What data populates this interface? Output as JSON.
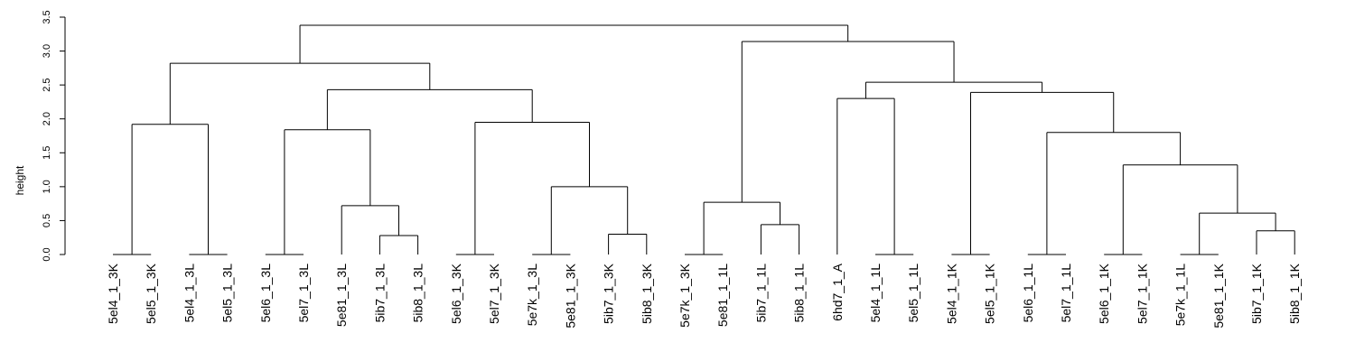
{
  "chart_data": {
    "type": "dendrogram",
    "ylabel": "height",
    "ylim": [
      0,
      3.5
    ],
    "yticks": [
      0.0,
      0.5,
      1.0,
      1.5,
      2.0,
      2.5,
      3.0,
      3.5
    ],
    "ytick_labels": [
      "0.0",
      "0.5",
      "1.0",
      "1.5",
      "2.0",
      "2.5",
      "3.0",
      "3.5"
    ],
    "leaves": [
      "5el4_1_3K",
      "5el5_1_3K",
      "5el4_1_3L",
      "5el5_1_3L",
      "5el6_1_3L",
      "5el7_1_3L",
      "5e81_1_3L",
      "5ib7_1_3L",
      "5ib8_1_3L",
      "5el6_1_3K",
      "5el7_1_3K",
      "5e7k_1_3L",
      "5e81_1_3K",
      "5ib7_1_3K",
      "5ib8_1_3K",
      "5e7k_1_3K",
      "5e81_1_1L",
      "5ib7_1_1L",
      "5ib8_1_1L",
      "6hd7_1_A",
      "5el4_1_1L",
      "5el5_1_1L",
      "5el4_1_1K",
      "5el5_1_1K",
      "5el6_1_1L",
      "5el7_1_1L",
      "5el6_1_1K",
      "5el7_1_1K",
      "5e7k_1_1L",
      "5e81_1_1K",
      "5ib7_1_1K",
      "5ib8_1_1K"
    ],
    "merges": [
      {
        "id": "m1",
        "left": 0,
        "right": 1,
        "height": 0.0
      },
      {
        "id": "m2",
        "left": 2,
        "right": 3,
        "height": 0.0
      },
      {
        "id": "m3",
        "left": "m1",
        "right": "m2",
        "height": 1.92
      },
      {
        "id": "m4",
        "left": 4,
        "right": 5,
        "height": 0.0
      },
      {
        "id": "m5",
        "left": 7,
        "right": 8,
        "height": 0.28
      },
      {
        "id": "m6",
        "left": 6,
        "right": "m5",
        "height": 0.72
      },
      {
        "id": "m7",
        "left": "m4",
        "right": "m6",
        "height": 1.84
      },
      {
        "id": "m8",
        "left": 9,
        "right": 10,
        "height": 0.0
      },
      {
        "id": "m9",
        "left": 11,
        "right": 12,
        "height": 0.0
      },
      {
        "id": "m10",
        "left": 13,
        "right": 14,
        "height": 0.3
      },
      {
        "id": "m11",
        "left": "m9",
        "right": "m10",
        "height": 1.0
      },
      {
        "id": "m12",
        "left": "m8",
        "right": "m11",
        "height": 1.95
      },
      {
        "id": "m13",
        "left": "m7",
        "right": "m12",
        "height": 2.43
      },
      {
        "id": "m14",
        "left": "m3",
        "right": "m13",
        "height": 2.82
      },
      {
        "id": "m15",
        "left": 15,
        "right": 16,
        "height": 0.0
      },
      {
        "id": "m16",
        "left": 17,
        "right": 18,
        "height": 0.44
      },
      {
        "id": "m17",
        "left": "m15",
        "right": "m16",
        "height": 0.77
      },
      {
        "id": "m18",
        "left": 20,
        "right": 21,
        "height": 0.0
      },
      {
        "id": "m19",
        "left": 19,
        "right": "m18",
        "height": 2.3
      },
      {
        "id": "m20",
        "left": 22,
        "right": 23,
        "height": 0.0
      },
      {
        "id": "m21",
        "left": 24,
        "right": 25,
        "height": 0.0
      },
      {
        "id": "m22",
        "left": 26,
        "right": 27,
        "height": 0.0
      },
      {
        "id": "m23",
        "left": 28,
        "right": 29,
        "height": 0.0
      },
      {
        "id": "m24",
        "left": 30,
        "right": 31,
        "height": 0.35
      },
      {
        "id": "m25",
        "left": "m23",
        "right": "m24",
        "height": 0.61
      },
      {
        "id": "m26",
        "left": "m22",
        "right": "m25",
        "height": 1.32
      },
      {
        "id": "m27",
        "left": "m21",
        "right": "m26",
        "height": 1.8
      },
      {
        "id": "m28",
        "left": "m20",
        "right": "m27",
        "height": 2.39
      },
      {
        "id": "m29",
        "left": "m19",
        "right": "m28",
        "height": 2.54
      },
      {
        "id": "m30",
        "left": "m17",
        "right": "m29",
        "height": 3.14
      },
      {
        "id": "m31",
        "left": "m14",
        "right": "m30",
        "height": 3.38
      }
    ]
  }
}
